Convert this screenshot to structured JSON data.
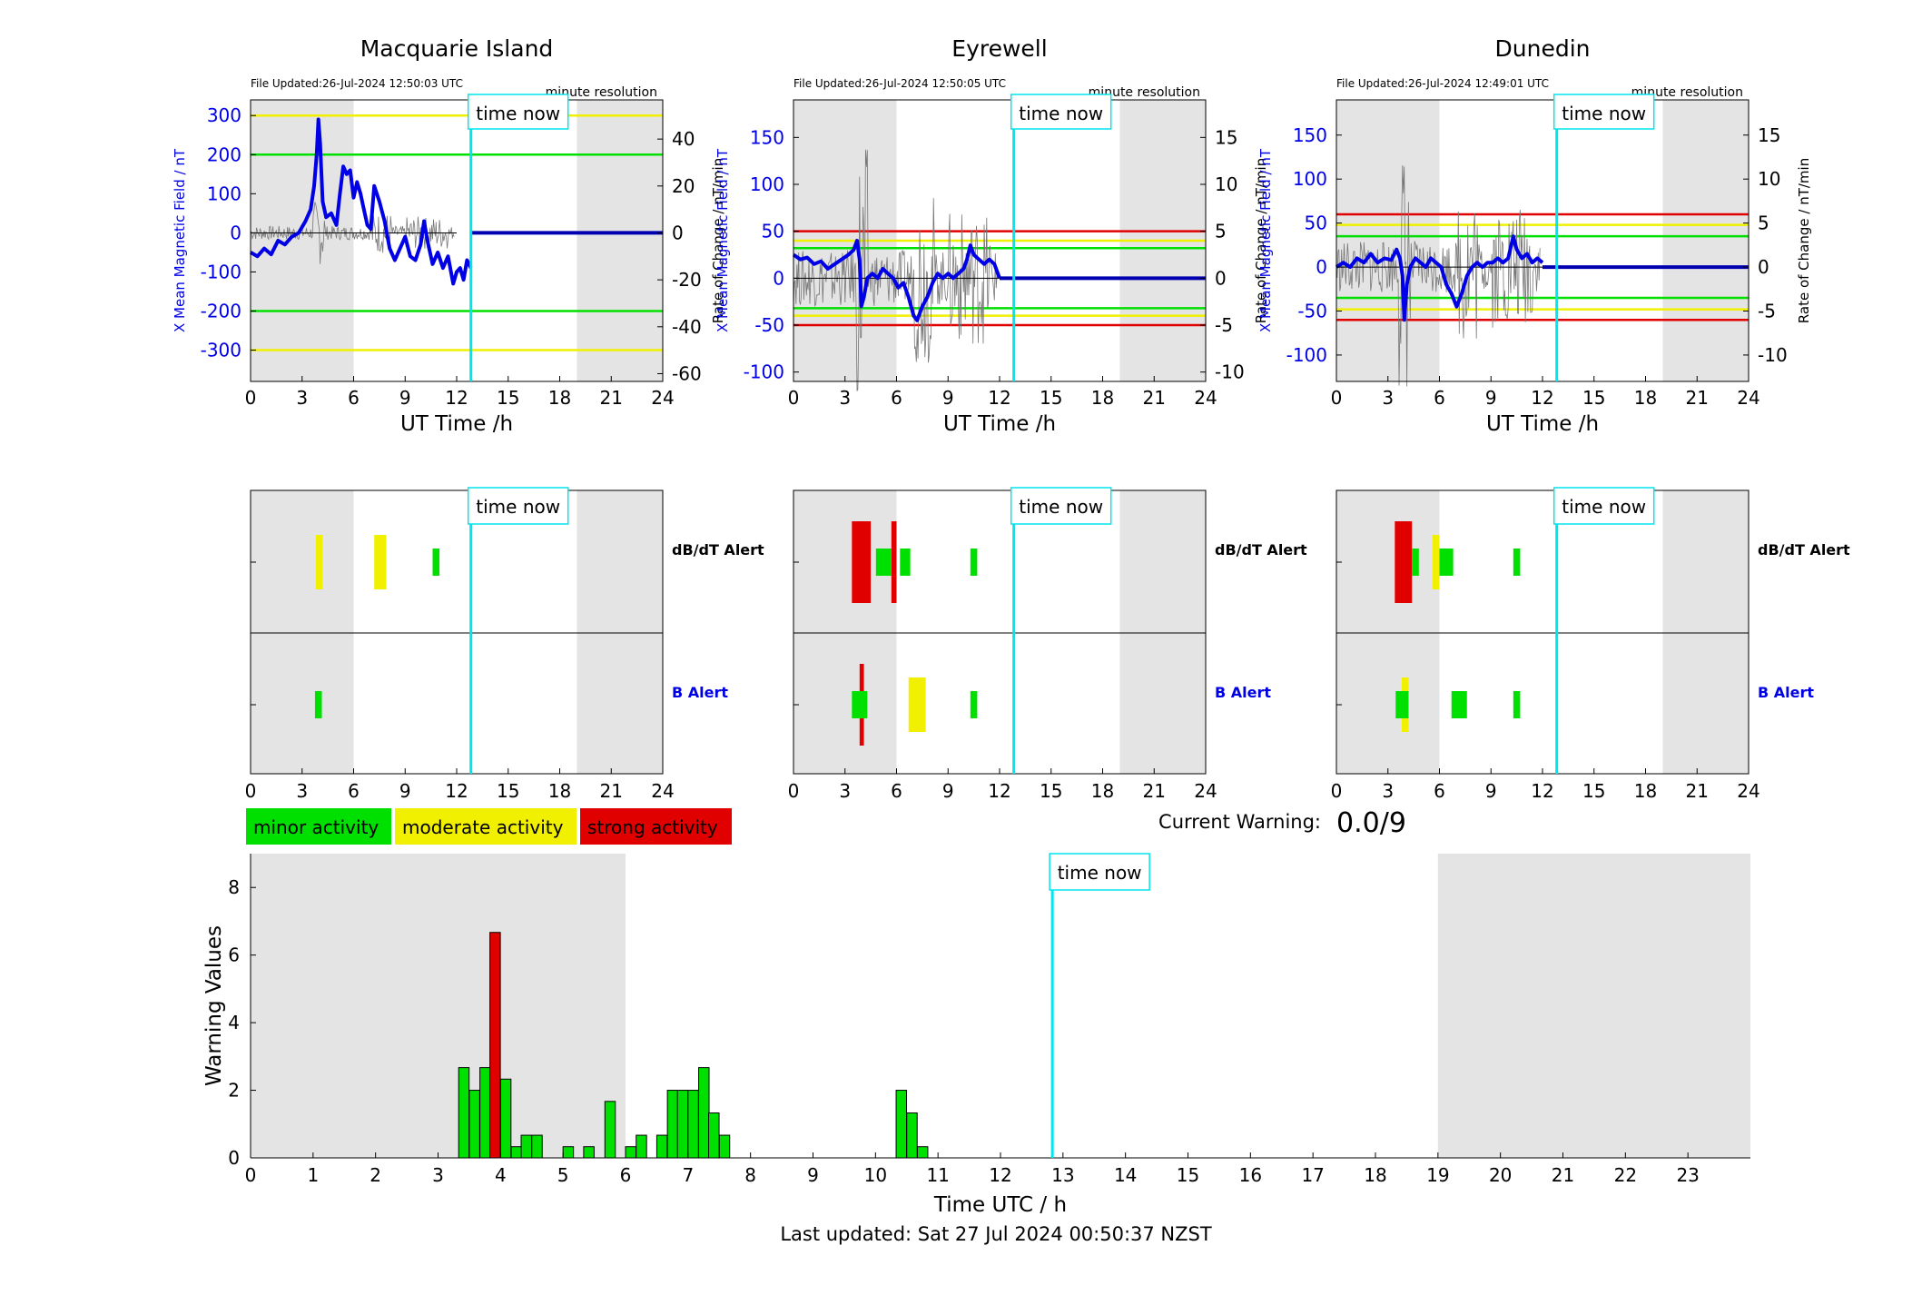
{
  "stations": [
    {
      "name": "Macquarie Island",
      "file_updated": "File Updated:26-Jul-2024 12:50:03 UTC",
      "resolution": "minute resolution",
      "left_axis_label": "X Mean Magnetic Field / nT",
      "right_axis_label": "Rate of Change / nT/min",
      "x_label": "UT Time /h",
      "xlim": [
        0,
        24
      ],
      "xticks": [
        "0",
        "3",
        "6",
        "9",
        "12",
        "15",
        "18",
        "21",
        "24"
      ],
      "ylim_left": [
        -380,
        340
      ],
      "yticks_left": [
        300,
        200,
        100,
        0,
        -100,
        -200,
        -300
      ],
      "ylim_right": [
        -63.3,
        56.7
      ],
      "yticks_right": [
        40,
        20,
        0,
        -20,
        -40,
        -60
      ],
      "threshold_lines": [
        {
          "value": 300,
          "color": "#f0f000"
        },
        {
          "value": 200,
          "color": "#00e000"
        },
        {
          "value": -200,
          "color": "#00e000"
        },
        {
          "value": -300,
          "color": "#f0f000"
        }
      ],
      "field_series": {
        "t": [
          0,
          0.4,
          0.8,
          1.2,
          1.6,
          2.0,
          2.4,
          2.8,
          3.2,
          3.5,
          3.7,
          3.85,
          3.95,
          4.05,
          4.2,
          4.4,
          4.7,
          5.0,
          5.2,
          5.4,
          5.6,
          5.8,
          6.0,
          6.2,
          6.4,
          6.6,
          6.8,
          7.0,
          7.2,
          7.5,
          7.8,
          8.1,
          8.4,
          8.7,
          9.0,
          9.3,
          9.6,
          9.9,
          10.1,
          10.3,
          10.6,
          10.9,
          11.2,
          11.5,
          11.8,
          12.0,
          12.2,
          12.4,
          12.6,
          12.83
        ],
        "v": [
          -50,
          -60,
          -40,
          -55,
          -20,
          -30,
          -10,
          0,
          30,
          60,
          120,
          200,
          290,
          230,
          80,
          40,
          50,
          20,
          100,
          170,
          150,
          160,
          90,
          130,
          100,
          60,
          20,
          10,
          120,
          80,
          30,
          -40,
          -70,
          -40,
          -10,
          -60,
          -70,
          -30,
          30,
          -20,
          -80,
          -50,
          -90,
          -60,
          -130,
          -100,
          -90,
          -120,
          -70,
          -90
        ]
      },
      "alert_db": [
        {
          "start": 3.8,
          "end": 4.2,
          "level": 2
        },
        {
          "start": 7.2,
          "end": 7.9,
          "level": 2
        },
        {
          "start": 10.6,
          "end": 11.0,
          "level": 1
        }
      ],
      "alert_b": [
        {
          "start": 3.75,
          "end": 4.15,
          "level": 1
        }
      ]
    },
    {
      "name": "Eyrewell",
      "file_updated": "File Updated:26-Jul-2024 12:50:05 UTC",
      "resolution": "minute resolution",
      "left_axis_label": "X Mean Magnetic Field / nT",
      "right_axis_label": "Rate of Change / nT/min",
      "x_label": "UT Time /h",
      "xlim": [
        0,
        24
      ],
      "xticks": [
        "0",
        "3",
        "6",
        "9",
        "12",
        "15",
        "18",
        "21",
        "24"
      ],
      "ylim_left": [
        -110,
        190
      ],
      "yticks_left": [
        150,
        100,
        50,
        0,
        -50,
        -100
      ],
      "ylim_right": [
        -11,
        19
      ],
      "yticks_right": [
        15,
        10,
        5,
        0,
        -5,
        -10
      ],
      "threshold_lines": [
        {
          "value": 50,
          "color": "#e00000"
        },
        {
          "value": 40,
          "color": "#f0f000"
        },
        {
          "value": 32,
          "color": "#00e000"
        },
        {
          "value": -32,
          "color": "#00e000"
        },
        {
          "value": -40,
          "color": "#f0f000"
        },
        {
          "value": -50,
          "color": "#e00000"
        }
      ],
      "field_series": {
        "t": [
          0,
          0.4,
          0.8,
          1.2,
          1.6,
          2.0,
          2.4,
          2.8,
          3.2,
          3.5,
          3.7,
          3.85,
          3.95,
          4.1,
          4.3,
          4.6,
          4.9,
          5.2,
          5.5,
          5.8,
          6.1,
          6.4,
          6.7,
          7.0,
          7.2,
          7.5,
          7.8,
          8.1,
          8.4,
          8.7,
          9.0,
          9.3,
          9.6,
          9.9,
          10.1,
          10.3,
          10.5,
          10.8,
          11.1,
          11.4,
          11.7,
          12.0
        ],
        "v": [
          25,
          20,
          22,
          15,
          18,
          10,
          15,
          20,
          25,
          30,
          40,
          20,
          -30,
          -20,
          0,
          5,
          0,
          10,
          5,
          0,
          -10,
          -5,
          -20,
          -40,
          -45,
          -30,
          -20,
          -5,
          5,
          0,
          5,
          0,
          5,
          10,
          20,
          35,
          25,
          20,
          15,
          20,
          15,
          0
        ]
      },
      "alert_db": [
        {
          "start": 3.4,
          "end": 4.5,
          "level": 3
        },
        {
          "start": 4.8,
          "end": 5.7,
          "level": 1
        },
        {
          "start": 5.7,
          "end": 6.0,
          "level": 3
        },
        {
          "start": 6.2,
          "end": 6.8,
          "level": 1
        },
        {
          "start": 10.3,
          "end": 10.7,
          "level": 1
        }
      ],
      "alert_b": [
        {
          "start": 3.4,
          "end": 4.3,
          "level": 1
        },
        {
          "start": 3.85,
          "end": 4.1,
          "level": 3
        },
        {
          "start": 6.7,
          "end": 7.7,
          "level": 2
        },
        {
          "start": 10.3,
          "end": 10.7,
          "level": 1
        }
      ]
    },
    {
      "name": "Dunedin",
      "file_updated": "File Updated:26-Jul-2024 12:49:01 UTC",
      "resolution": "minute resolution",
      "left_axis_label": "X Mean Magnetic Field / nT",
      "right_axis_label": "Rate of Change / nT/min",
      "x_label": "UT Time /h",
      "xlim": [
        0,
        24
      ],
      "xticks": [
        "0",
        "3",
        "6",
        "9",
        "12",
        "15",
        "18",
        "21",
        "24"
      ],
      "ylim_left": [
        -130,
        190
      ],
      "yticks_left": [
        150,
        100,
        50,
        0,
        -50,
        -100
      ],
      "ylim_right": [
        -13,
        19
      ],
      "yticks_right": [
        15,
        10,
        5,
        0,
        -5,
        -10
      ],
      "threshold_lines": [
        {
          "value": 60,
          "color": "#e00000"
        },
        {
          "value": 48,
          "color": "#f0f000"
        },
        {
          "value": 35,
          "color": "#00e000"
        },
        {
          "value": -35,
          "color": "#00e000"
        },
        {
          "value": -48,
          "color": "#f0f000"
        },
        {
          "value": -60,
          "color": "#e00000"
        }
      ],
      "field_series": {
        "t": [
          0,
          0.4,
          0.8,
          1.2,
          1.6,
          2.0,
          2.4,
          2.8,
          3.2,
          3.5,
          3.7,
          3.85,
          3.95,
          4.1,
          4.3,
          4.6,
          4.9,
          5.2,
          5.5,
          5.8,
          6.1,
          6.4,
          6.7,
          7.0,
          7.3,
          7.6,
          7.9,
          8.2,
          8.5,
          8.8,
          9.1,
          9.4,
          9.7,
          10.0,
          10.3,
          10.5,
          10.8,
          11.1,
          11.4,
          11.7,
          12.0
        ],
        "v": [
          0,
          5,
          0,
          10,
          5,
          15,
          5,
          10,
          8,
          20,
          10,
          -10,
          -60,
          -20,
          0,
          10,
          5,
          0,
          10,
          5,
          0,
          -20,
          -30,
          -45,
          -30,
          -10,
          0,
          5,
          0,
          5,
          5,
          10,
          5,
          10,
          35,
          20,
          10,
          15,
          5,
          10,
          5
        ]
      },
      "alert_db": [
        {
          "start": 3.4,
          "end": 4.4,
          "level": 3
        },
        {
          "start": 4.4,
          "end": 4.8,
          "level": 1
        },
        {
          "start": 5.6,
          "end": 6.0,
          "level": 2
        },
        {
          "start": 6.0,
          "end": 6.8,
          "level": 1
        },
        {
          "start": 10.3,
          "end": 10.7,
          "level": 1
        }
      ],
      "alert_b": [
        {
          "start": 3.45,
          "end": 4.2,
          "level": 1
        },
        {
          "start": 3.8,
          "end": 4.2,
          "level": 2
        },
        {
          "start": 6.7,
          "end": 7.6,
          "level": 1
        },
        {
          "start": 10.3,
          "end": 10.7,
          "level": 1
        }
      ]
    }
  ],
  "time_now_label": "time now",
  "time_now_hour": 12.83,
  "alert_labels": {
    "db": "dB/dT Alert",
    "b": "B Alert"
  },
  "legend": [
    {
      "label": "minor activity",
      "color": "#00e000"
    },
    {
      "label": "moderate activity",
      "color": "#f0f000"
    },
    {
      "label": "strong activity",
      "color": "#e00000"
    }
  ],
  "current_warning_label": "Current Warning:",
  "current_warning_value": "0.0/9",
  "chart_data": {
    "type": "bar",
    "xlabel": "Time UTC / h",
    "ylabel": "Warning Values",
    "xlim": [
      0,
      24
    ],
    "ylim": [
      0,
      9
    ],
    "xticks": [
      "0",
      "1",
      "2",
      "3",
      "4",
      "5",
      "6",
      "7",
      "8",
      "9",
      "10",
      "11",
      "12",
      "13",
      "14",
      "15",
      "16",
      "17",
      "18",
      "19",
      "20",
      "21",
      "22",
      "23"
    ],
    "yticks": [
      "0",
      "2",
      "4",
      "6",
      "8"
    ],
    "shaded_ranges": [
      [
        0,
        6
      ],
      [
        19,
        24
      ]
    ],
    "bars": [
      {
        "x": 3.33,
        "value": 2.67,
        "color": "#00e000"
      },
      {
        "x": 3.5,
        "value": 2.0,
        "color": "#00e000"
      },
      {
        "x": 3.67,
        "value": 2.67,
        "color": "#00e000"
      },
      {
        "x": 3.83,
        "value": 6.67,
        "color": "#e00000"
      },
      {
        "x": 4.0,
        "value": 2.33,
        "color": "#00e000"
      },
      {
        "x": 4.17,
        "value": 0.33,
        "color": "#00e000"
      },
      {
        "x": 4.33,
        "value": 0.67,
        "color": "#00e000"
      },
      {
        "x": 4.5,
        "value": 0.67,
        "color": "#00e000"
      },
      {
        "x": 5.0,
        "value": 0.33,
        "color": "#00e000"
      },
      {
        "x": 5.33,
        "value": 0.33,
        "color": "#00e000"
      },
      {
        "x": 5.67,
        "value": 1.67,
        "color": "#00e000"
      },
      {
        "x": 6.0,
        "value": 0.33,
        "color": "#00e000"
      },
      {
        "x": 6.17,
        "value": 0.67,
        "color": "#00e000"
      },
      {
        "x": 6.5,
        "value": 0.67,
        "color": "#00e000"
      },
      {
        "x": 6.67,
        "value": 2.0,
        "color": "#00e000"
      },
      {
        "x": 6.83,
        "value": 2.0,
        "color": "#00e000"
      },
      {
        "x": 7.0,
        "value": 2.0,
        "color": "#00e000"
      },
      {
        "x": 7.17,
        "value": 2.67,
        "color": "#00e000"
      },
      {
        "x": 7.33,
        "value": 1.33,
        "color": "#00e000"
      },
      {
        "x": 7.5,
        "value": 0.67,
        "color": "#00e000"
      },
      {
        "x": 10.33,
        "value": 2.0,
        "color": "#00e000"
      },
      {
        "x": 10.5,
        "value": 1.33,
        "color": "#00e000"
      },
      {
        "x": 10.67,
        "value": 0.33,
        "color": "#00e000"
      }
    ]
  },
  "last_updated": "Last updated: Sat 27 Jul 2024 00:50:37 NZST"
}
